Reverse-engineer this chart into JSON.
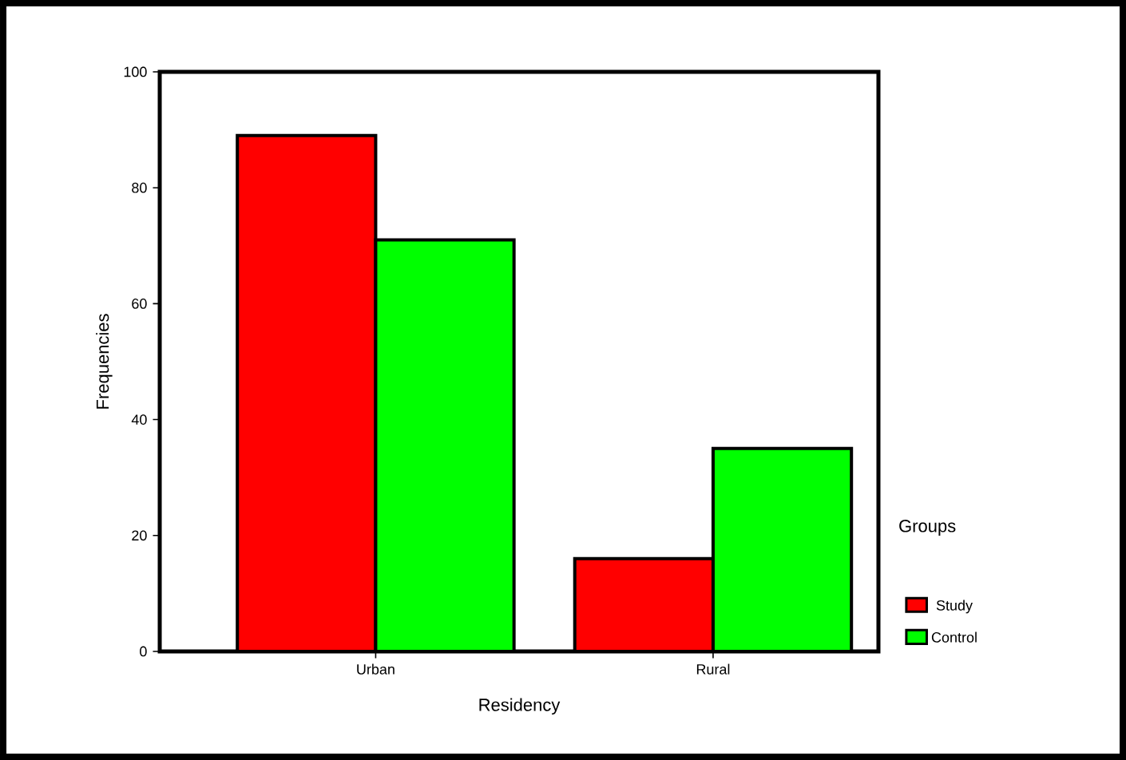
{
  "chart_data": {
    "type": "bar",
    "xlabel": "Residency",
    "ylabel": "Frequencies",
    "legend_title": "Groups",
    "categories": [
      "Urban",
      "Rural"
    ],
    "series": [
      {
        "name": "Study",
        "color": "#ff0000",
        "values": [
          89,
          16
        ]
      },
      {
        "name": "Control",
        "color": "#00ff00",
        "values": [
          71,
          35
        ]
      }
    ],
    "ylim": [
      0,
      100
    ],
    "yticks": [
      0,
      20,
      40,
      60,
      80,
      100
    ],
    "grid": false,
    "legend": "right"
  }
}
